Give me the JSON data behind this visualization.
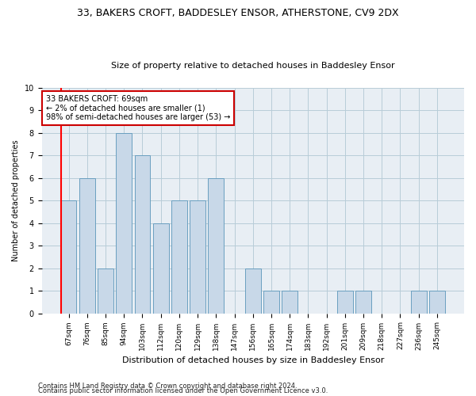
{
  "title1": "33, BAKERS CROFT, BADDESLEY ENSOR, ATHERSTONE, CV9 2DX",
  "title2": "Size of property relative to detached houses in Baddesley Ensor",
  "xlabel": "Distribution of detached houses by size in Baddesley Ensor",
  "ylabel": "Number of detached properties",
  "categories": [
    "67sqm",
    "76sqm",
    "85sqm",
    "94sqm",
    "103sqm",
    "112sqm",
    "120sqm",
    "129sqm",
    "138sqm",
    "147sqm",
    "156sqm",
    "165sqm",
    "174sqm",
    "183sqm",
    "192sqm",
    "201sqm",
    "209sqm",
    "218sqm",
    "227sqm",
    "236sqm",
    "245sqm"
  ],
  "values": [
    5,
    6,
    2,
    8,
    7,
    4,
    5,
    5,
    6,
    0,
    2,
    1,
    1,
    0,
    0,
    1,
    1,
    0,
    0,
    1,
    1
  ],
  "bar_color": "#c8d8e8",
  "bar_edge_color": "#6a9fc0",
  "annotation_box_text": "33 BAKERS CROFT: 69sqm\n← 2% of detached houses are smaller (1)\n98% of semi-detached houses are larger (53) →",
  "annotation_box_edge_color": "#cc0000",
  "annotation_box_facecolor": "white",
  "ylim": [
    0,
    10
  ],
  "yticks": [
    0,
    1,
    2,
    3,
    4,
    5,
    6,
    7,
    8,
    9,
    10
  ],
  "footnote1": "Contains HM Land Registry data © Crown copyright and database right 2024.",
  "footnote2": "Contains public sector information licensed under the Open Government Licence v3.0.",
  "background_color": "#e8eef4",
  "grid_color": "#b8ccd8",
  "title1_fontsize": 9,
  "title2_fontsize": 8,
  "xlabel_fontsize": 8,
  "ylabel_fontsize": 7,
  "xtick_fontsize": 6.5,
  "ytick_fontsize": 7,
  "annot_fontsize": 7,
  "footnote_fontsize": 6
}
